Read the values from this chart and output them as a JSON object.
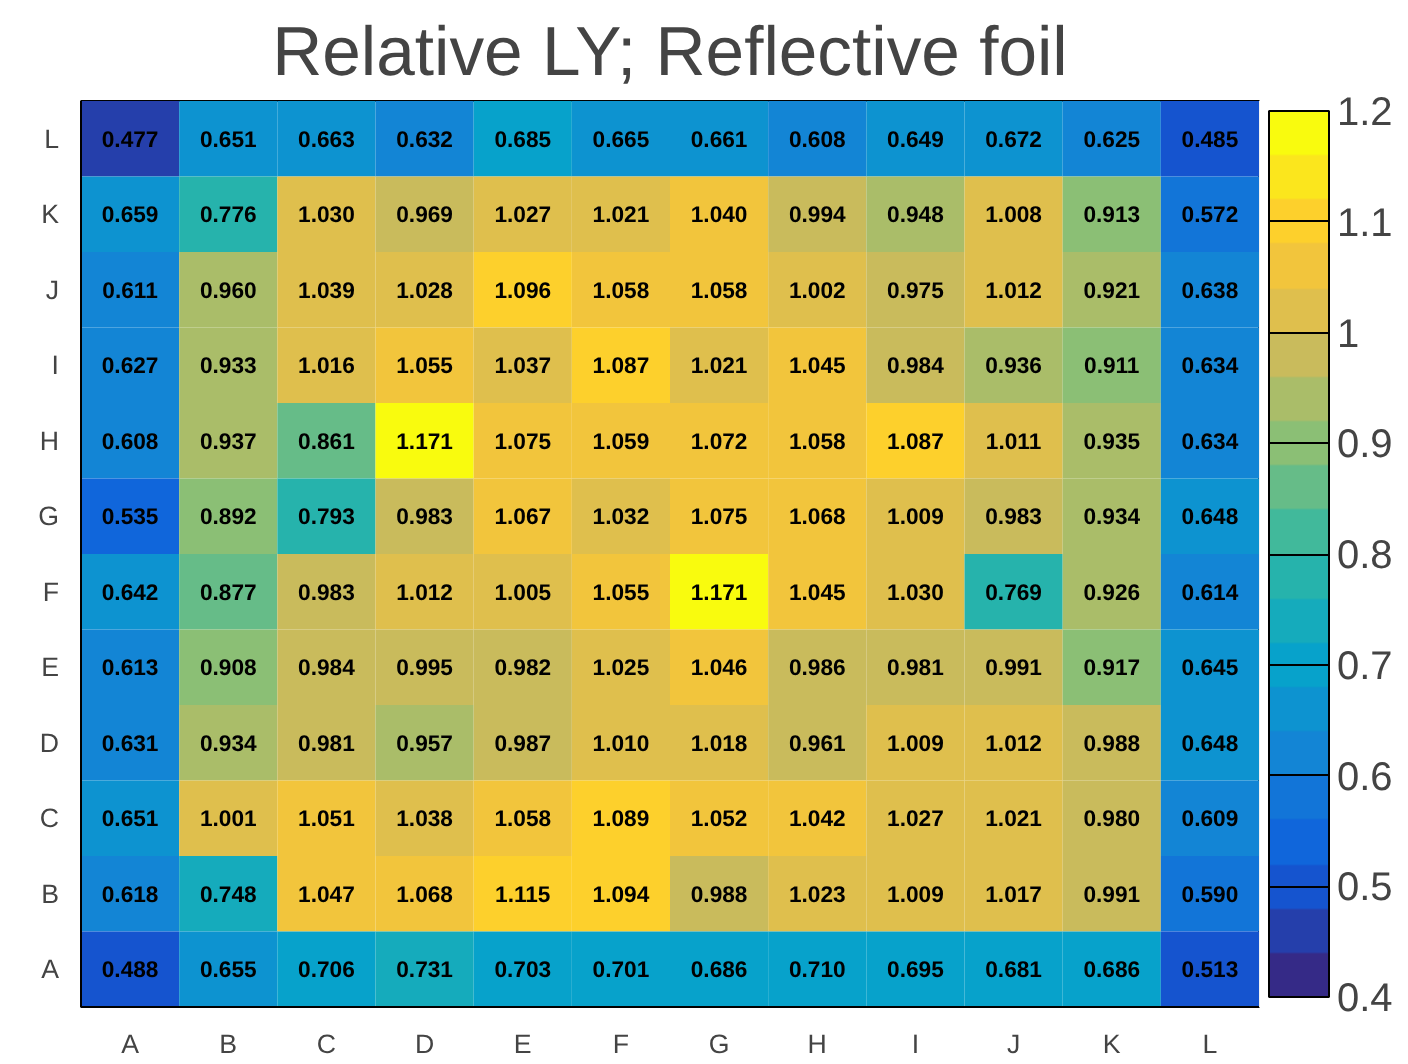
{
  "chart_data": {
    "type": "heatmap",
    "title": "Relative LY; Reflective foil",
    "categories": [
      "A",
      "B",
      "C",
      "D",
      "E",
      "F",
      "G",
      "H",
      "I",
      "J",
      "K",
      "L"
    ],
    "y_categories": [
      "L",
      "K",
      "J",
      "I",
      "H",
      "G",
      "F",
      "E",
      "D",
      "C",
      "B",
      "A"
    ],
    "cells": [
      [
        0.477,
        0.651,
        0.663,
        0.632,
        0.685,
        0.665,
        0.661,
        0.608,
        0.649,
        0.672,
        0.625,
        0.485
      ],
      [
        0.659,
        0.776,
        1.03,
        0.969,
        1.027,
        1.021,
        1.04,
        0.994,
        0.948,
        1.008,
        0.913,
        0.572
      ],
      [
        0.611,
        0.96,
        1.039,
        1.028,
        1.096,
        1.058,
        1.058,
        1.002,
        0.975,
        1.012,
        0.921,
        0.638
      ],
      [
        0.627,
        0.933,
        1.016,
        1.055,
        1.037,
        1.087,
        1.021,
        1.045,
        0.984,
        0.936,
        0.911,
        0.634
      ],
      [
        0.608,
        0.937,
        0.861,
        1.171,
        1.075,
        1.059,
        1.072,
        1.058,
        1.087,
        1.011,
        0.935,
        0.634
      ],
      [
        0.535,
        0.892,
        0.793,
        0.983,
        1.067,
        1.032,
        1.075,
        1.068,
        1.009,
        0.983,
        0.934,
        0.648
      ],
      [
        0.642,
        0.877,
        0.983,
        1.012,
        1.005,
        1.055,
        1.171,
        1.045,
        1.03,
        0.769,
        0.926,
        0.614
      ],
      [
        0.613,
        0.908,
        0.984,
        0.995,
        0.982,
        1.025,
        1.046,
        0.986,
        0.981,
        0.991,
        0.917,
        0.645
      ],
      [
        0.631,
        0.934,
        0.981,
        0.957,
        0.987,
        1.01,
        1.018,
        0.961,
        1.009,
        1.012,
        0.988,
        0.648
      ],
      [
        0.651,
        1.001,
        1.051,
        1.038,
        1.058,
        1.089,
        1.052,
        1.042,
        1.027,
        1.021,
        0.98,
        0.609
      ],
      [
        0.618,
        0.748,
        1.047,
        1.068,
        1.115,
        1.094,
        0.988,
        1.023,
        1.009,
        1.017,
        0.991,
        0.59
      ],
      [
        0.488,
        0.655,
        0.706,
        0.731,
        0.703,
        0.701,
        0.686,
        0.71,
        0.695,
        0.681,
        0.686,
        0.513
      ]
    ],
    "cell_labels": [
      [
        "0.477",
        "0.651",
        "0.663",
        "0.632",
        "0.685",
        "0.665",
        "0.661",
        "0.608",
        "0.649",
        "0.672",
        "0.625",
        "0.485"
      ],
      [
        "0.659",
        "0.776",
        "1.030",
        "0.969",
        "1.027",
        "1.021",
        "1.040",
        "0.994",
        "0.948",
        "1.008",
        "0.913",
        "0.572"
      ],
      [
        "0.611",
        "0.960",
        "1.039",
        "1.028",
        "1.096",
        "1.058",
        "1.058",
        "1.002",
        "0.975",
        "1.012",
        "0.921",
        "0.638"
      ],
      [
        "0.627",
        "0.933",
        "1.016",
        "1.055",
        "1.037",
        "1.087",
        "1.021",
        "1.045",
        "0.984",
        "0.936",
        "0.911",
        "0.634"
      ],
      [
        "0.608",
        "0.937",
        "0.861",
        "1.171",
        "1.075",
        "1.059",
        "1.072",
        "1.058",
        "1.087",
        "1.011",
        "0.935",
        "0.634"
      ],
      [
        "0.535",
        "0.892",
        "0.793",
        "0.983",
        "1.067",
        "1.032",
        "1.075",
        "1.068",
        "1.009",
        "0.983",
        "0.934",
        "0.648"
      ],
      [
        "0.642",
        "0.877",
        "0.983",
        "1.012",
        "1.005",
        "1.055",
        "1.171",
        "1.045",
        "1.030",
        "0.769",
        "0.926",
        "0.614"
      ],
      [
        "0.613",
        "0.908",
        "0.984",
        "0.995",
        "0.982",
        "1.025",
        "1.046",
        "0.986",
        "0.981",
        "0.991",
        "0.917",
        "0.645"
      ],
      [
        "0.631",
        "0.934",
        "0.981",
        "0.957",
        "0.987",
        "1.010",
        "1.018",
        "0.961",
        "1.009",
        "1.012",
        "0.988",
        "0.648"
      ],
      [
        "0.651",
        "1.001",
        "1.051",
        "1.038",
        "1.058",
        "1.089",
        "1.052",
        "1.042",
        "1.027",
        "1.021",
        "0.980",
        "0.609"
      ],
      [
        "0.618",
        "0.748",
        "1.047",
        "1.068",
        "1.115",
        "1.094",
        "0.988",
        "1.023",
        "1.009",
        "1.017",
        "0.991",
        "0.590"
      ],
      [
        "0.488",
        "0.655",
        "0.706",
        "0.731",
        "0.703",
        "0.701",
        "0.686",
        "0.710",
        "0.695",
        "0.681",
        "0.686",
        "0.513"
      ]
    ],
    "data_labels": true,
    "clim": [
      0.4,
      1.2
    ],
    "cticks": [
      0.4,
      0.5,
      0.6,
      0.7,
      0.8,
      0.9,
      1,
      1.1,
      1.2
    ]
  }
}
